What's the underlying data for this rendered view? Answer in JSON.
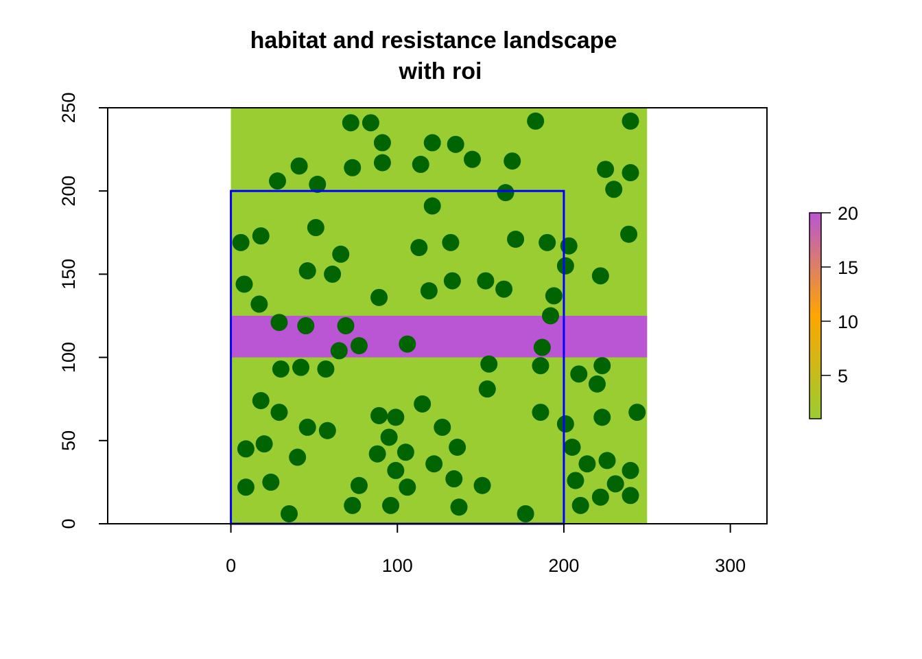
{
  "chart_data": {
    "type": "scatter",
    "title_line1": "habitat and resistance landscape",
    "title_line2": "with roi",
    "xlabel": "",
    "ylabel": "",
    "xlim": [
      -74,
      322
    ],
    "ylim": [
      0,
      250
    ],
    "x_ticks": [
      0,
      100,
      200,
      300
    ],
    "y_ticks": [
      0,
      50,
      100,
      150,
      200,
      250
    ],
    "raster": {
      "extent": {
        "xmin": 0,
        "xmax": 250,
        "ymin": 0,
        "ymax": 250
      },
      "background_value": 1,
      "background_color": "#9ACD32",
      "band": {
        "ymin": 100,
        "ymax": 125,
        "value": 20,
        "color": "#BA55D3"
      }
    },
    "roi": {
      "xmin": 0,
      "xmax": 200,
      "ymin": 0,
      "ymax": 200,
      "color": "#0000FF"
    },
    "legend": {
      "placement": "right",
      "ticks": [
        5,
        10,
        15,
        20
      ],
      "min": 1,
      "max": 20,
      "gradient": [
        "#9ACD32",
        "#FFA500",
        "#BA55D3"
      ]
    },
    "points_color": "#006400",
    "points": [
      [
        72,
        241
      ],
      [
        84,
        241
      ],
      [
        183,
        242
      ],
      [
        240,
        242
      ],
      [
        91,
        229
      ],
      [
        121,
        229
      ],
      [
        135,
        228
      ],
      [
        145,
        219
      ],
      [
        91,
        217
      ],
      [
        114,
        216
      ],
      [
        169,
        218
      ],
      [
        41,
        215
      ],
      [
        73,
        214
      ],
      [
        28,
        206
      ],
      [
        52,
        204
      ],
      [
        225,
        213
      ],
      [
        240,
        211
      ],
      [
        230,
        201
      ],
      [
        165,
        199
      ],
      [
        121,
        191
      ],
      [
        51,
        178
      ],
      [
        18,
        173
      ],
      [
        6,
        169
      ],
      [
        132,
        169
      ],
      [
        171,
        171
      ],
      [
        113,
        166
      ],
      [
        190,
        169
      ],
      [
        203,
        167
      ],
      [
        66,
        162
      ],
      [
        239,
        174
      ],
      [
        201,
        155
      ],
      [
        46,
        152
      ],
      [
        61,
        150
      ],
      [
        222,
        149
      ],
      [
        8,
        144
      ],
      [
        133,
        146
      ],
      [
        153,
        146
      ],
      [
        164,
        141
      ],
      [
        119,
        140
      ],
      [
        89,
        136
      ],
      [
        194,
        137
      ],
      [
        17,
        132
      ],
      [
        192,
        125
      ],
      [
        29,
        121
      ],
      [
        45,
        119
      ],
      [
        69,
        119
      ],
      [
        77,
        107
      ],
      [
        65,
        104
      ],
      [
        106,
        108
      ],
      [
        187,
        106
      ],
      [
        155,
        96
      ],
      [
        186,
        95
      ],
      [
        223,
        95
      ],
      [
        30,
        93
      ],
      [
        42,
        94
      ],
      [
        57,
        93
      ],
      [
        209,
        90
      ],
      [
        220,
        84
      ],
      [
        154,
        81
      ],
      [
        18,
        74
      ],
      [
        115,
        72
      ],
      [
        29,
        67
      ],
      [
        186,
        67
      ],
      [
        244,
        67
      ],
      [
        89,
        65
      ],
      [
        99,
        64
      ],
      [
        223,
        64
      ],
      [
        201,
        60
      ],
      [
        46,
        58
      ],
      [
        58,
        56
      ],
      [
        127,
        58
      ],
      [
        95,
        52
      ],
      [
        20,
        48
      ],
      [
        9,
        45
      ],
      [
        136,
        46
      ],
      [
        205,
        46
      ],
      [
        105,
        43
      ],
      [
        88,
        42
      ],
      [
        40,
        40
      ],
      [
        226,
        38
      ],
      [
        122,
        36
      ],
      [
        214,
        36
      ],
      [
        99,
        32
      ],
      [
        240,
        32
      ],
      [
        134,
        27
      ],
      [
        207,
        26
      ],
      [
        24,
        25
      ],
      [
        231,
        24
      ],
      [
        9,
        22
      ],
      [
        77,
        23
      ],
      [
        106,
        22
      ],
      [
        151,
        23
      ],
      [
        240,
        17
      ],
      [
        222,
        16
      ],
      [
        73,
        11
      ],
      [
        96,
        11
      ],
      [
        137,
        10
      ],
      [
        210,
        11
      ],
      [
        35,
        6
      ],
      [
        177,
        6
      ]
    ]
  }
}
